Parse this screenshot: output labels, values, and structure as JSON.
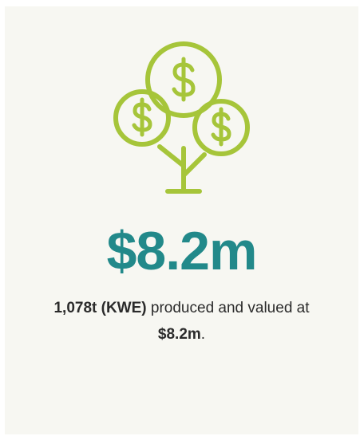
{
  "stat": {
    "value": "$8.2m"
  },
  "description": {
    "segments": [
      {
        "text": "1,078t (KWE)",
        "bold": true
      },
      {
        "text": " produced and valued at ",
        "bold": false
      },
      {
        "text": "$8.2m",
        "bold": true
      },
      {
        "text": ".",
        "bold": false
      }
    ]
  }
}
